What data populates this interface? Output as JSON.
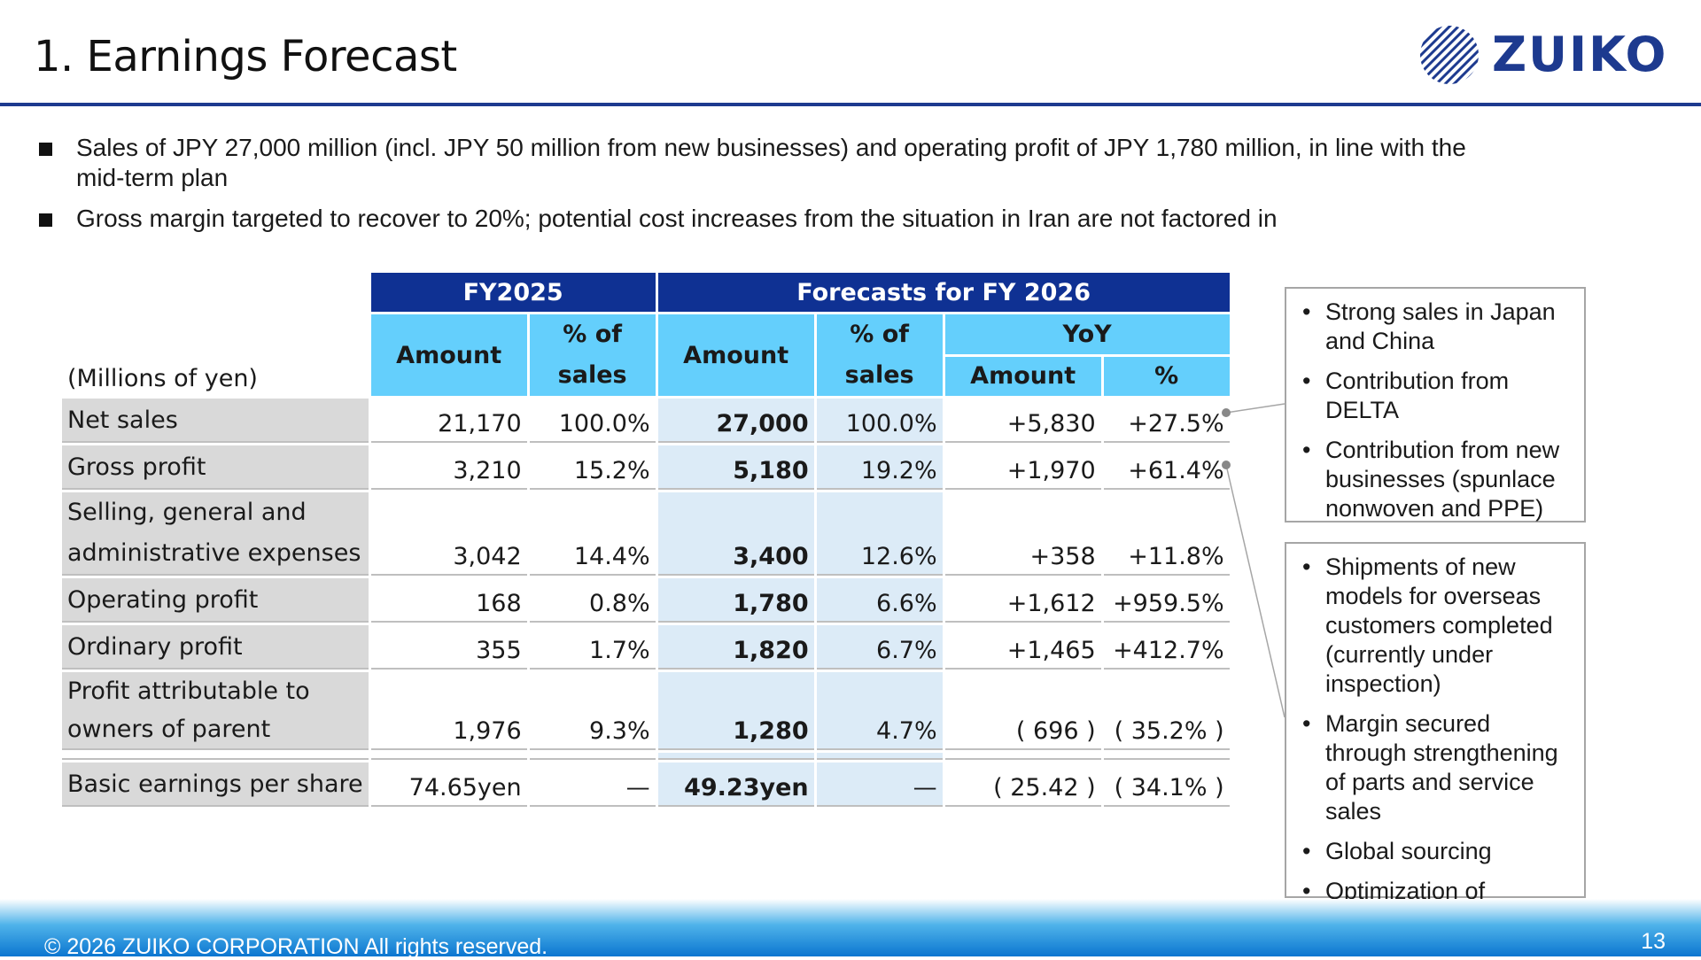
{
  "header": {
    "title": "1. Earnings Forecast",
    "logo_text": "ZUIKO"
  },
  "bullets": [
    "Sales of JPY 27,000 million (incl. JPY 50 million from new businesses) and operating profit of JPY 1,780 million, in line with the mid-term plan",
    "Gross margin targeted to recover to 20%; potential cost increases from the situation in Iran are not factored in"
  ],
  "table": {
    "unit_label": "(Millions of yen)",
    "group_fy2025": "FY2025",
    "group_fy2026": "Forecasts for FY 2026",
    "col_amount": "Amount",
    "col_pct_sales": "% of\nsales",
    "col_yoy": "YoY",
    "col_yoy_amount": "Amount",
    "col_yoy_pct": "%",
    "rows": [
      {
        "label": "Net sales",
        "fy25_amount": "21,170",
        "fy25_pct": "100.0%",
        "fy26_amount": "27,000",
        "fy26_pct": "100.0%",
        "yoy_amount": "+5,830",
        "yoy_pct": "+27.5%"
      },
      {
        "label": "Gross profit",
        "fy25_amount": "3,210",
        "fy25_pct": "15.2%",
        "fy26_amount": "5,180",
        "fy26_pct": "19.2%",
        "yoy_amount": "+1,970",
        "yoy_pct": "+61.4%"
      },
      {
        "label": "Selling, general and\nadministrative expenses",
        "fy25_amount": "3,042",
        "fy25_pct": "14.4%",
        "fy26_amount": "3,400",
        "fy26_pct": "12.6%",
        "yoy_amount": "+358",
        "yoy_pct": "+11.8%"
      },
      {
        "label": "Operating profit",
        "fy25_amount": "168",
        "fy25_pct": "0.8%",
        "fy26_amount": "1,780",
        "fy26_pct": "6.6%",
        "yoy_amount": "+1,612",
        "yoy_pct": "+959.5%"
      },
      {
        "label": "Ordinary profit",
        "fy25_amount": "355",
        "fy25_pct": "1.7%",
        "fy26_amount": "1,820",
        "fy26_pct": "6.7%",
        "yoy_amount": "+1,465",
        "yoy_pct": "+412.7%"
      },
      {
        "label": "Profit attributable to\nowners of parent",
        "fy25_amount": "1,976",
        "fy25_pct": "9.3%",
        "fy26_amount": "1,280",
        "fy26_pct": "4.7%",
        "yoy_amount": "( 696 )",
        "yoy_pct": "( 35.2% )"
      }
    ],
    "eps_row": {
      "label": "Basic earnings per share",
      "fy25_amount": "74.65yen",
      "fy25_pct": "—",
      "fy26_amount": "49.23yen",
      "fy26_pct": "—",
      "yoy_amount": "( 25.42 )",
      "yoy_pct": "( 34.1% )"
    }
  },
  "notes": {
    "sales_box": [
      "Strong sales in Japan and China",
      "Contribution from DELTA",
      "Contribution from new businesses (spunlace nonwoven and PPE)"
    ],
    "gross_box": [
      "Shipments of new models for overseas customers completed (currently under inspection)",
      "Margin secured through strengthening of parts and service sales",
      "Global sourcing",
      "Optimization of shipment lead times"
    ]
  },
  "footer": {
    "copyright": "© 2026 ZUIKO CORPORATION All rights reserved.",
    "page_number": "13"
  },
  "colors": {
    "dark_blue": "#0f3193",
    "light_blue": "#64cffc",
    "highlight": "#dcebf7",
    "label_gray": "#d9d9d9"
  }
}
